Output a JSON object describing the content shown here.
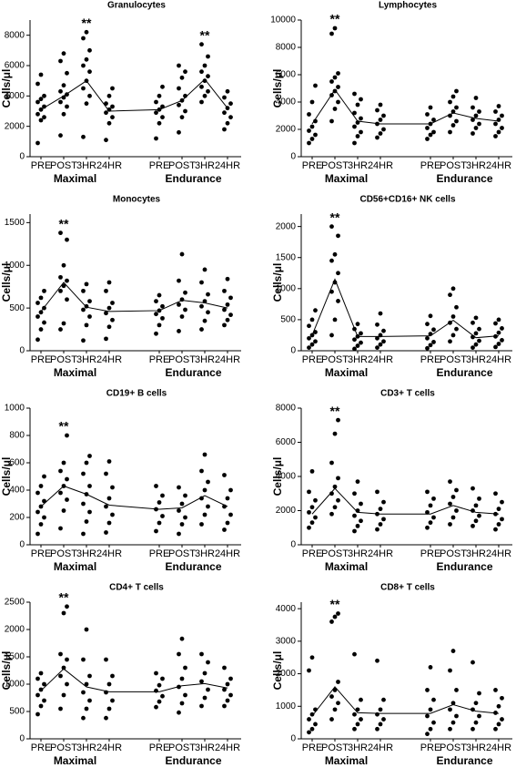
{
  "chart_data": [
    {
      "type": "strip",
      "title": "Granulocytes",
      "ylabel": "Cells/μl",
      "categories": [
        "PRE",
        "POST",
        "3HR",
        "24HR",
        "PRE",
        "POST",
        "3HR",
        "24HR"
      ],
      "groups": [
        "Maximal",
        "Endurance"
      ],
      "significance": [
        null,
        null,
        "**",
        null,
        null,
        null,
        "**",
        null
      ],
      "ylim": [
        0,
        9000
      ],
      "yticks": [
        0,
        2000,
        4000,
        6000,
        8000
      ],
      "means": [
        3100,
        4000,
        5000,
        3000,
        3100,
        3700,
        5100,
        3200
      ],
      "points": [
        [
          900,
          2400,
          2600,
          2800,
          3100,
          3300,
          3600,
          3800,
          4000,
          4800,
          5400
        ],
        [
          1400,
          2800,
          3300,
          3600,
          3900,
          4100,
          4300,
          4700,
          5500,
          6300,
          6800
        ],
        [
          1300,
          3500,
          4000,
          4500,
          5000,
          5600,
          6000,
          6400,
          7000,
          7800,
          8200
        ],
        [
          1100,
          2200,
          2600,
          2900,
          3100,
          3300,
          3500,
          4000,
          4500
        ],
        [
          1200,
          2200,
          2600,
          2900,
          3100,
          3300,
          3600,
          4000,
          4600
        ],
        [
          1600,
          2600,
          3000,
          3400,
          3700,
          4000,
          4500,
          5200,
          5600,
          6000
        ],
        [
          3600,
          4000,
          4300,
          4600,
          5000,
          5300,
          5600,
          6000,
          6600,
          7400
        ],
        [
          1800,
          2200,
          2600,
          2900,
          3200,
          3500,
          3900,
          4300
        ]
      ]
    },
    {
      "type": "strip",
      "title": "Lymphocytes",
      "ylabel": "Cells/μl",
      "categories": [
        "PRE",
        "POST",
        "3HR",
        "24HR",
        "PRE",
        "POST",
        "3HR",
        "24HR"
      ],
      "groups": [
        "Maximal",
        "Endurance"
      ],
      "significance": [
        null,
        "**",
        null,
        null,
        null,
        null,
        null,
        null
      ],
      "ylim": [
        0,
        10000
      ],
      "yticks": [
        0,
        2000,
        4000,
        6000,
        8000,
        10000
      ],
      "means": [
        2400,
        4900,
        2600,
        2400,
        2400,
        3200,
        2800,
        2600
      ],
      "points": [
        [
          1000,
          1300,
          1600,
          1900,
          2200,
          2600,
          3100,
          4000,
          5200
        ],
        [
          2600,
          3500,
          4000,
          4500,
          4800,
          5100,
          5500,
          5800,
          6100,
          9000,
          9400
        ],
        [
          1000,
          1500,
          1800,
          2200,
          2500,
          2800,
          3200,
          3800,
          4200,
          4600
        ],
        [
          1400,
          1700,
          2000,
          2400,
          2700,
          3000,
          3400,
          3800
        ],
        [
          1300,
          1600,
          1800,
          2100,
          2400,
          2700,
          3100,
          3600
        ],
        [
          1800,
          2300,
          2600,
          3000,
          3300,
          3600,
          4000,
          4400,
          4800
        ],
        [
          1700,
          2100,
          2400,
          2700,
          3000,
          3300,
          3600,
          4300
        ],
        [
          1500,
          1800,
          2100,
          2400,
          2700,
          3000,
          3300,
          3700
        ]
      ]
    },
    {
      "type": "strip",
      "title": "Monocytes",
      "ylabel": "Cells/μl",
      "categories": [
        "PRE",
        "POST",
        "3HR",
        "24HR",
        "PRE",
        "POST",
        "3HR",
        "24HR"
      ],
      "groups": [
        "Maximal",
        "Endurance"
      ],
      "significance": [
        null,
        "**",
        null,
        null,
        null,
        null,
        null,
        null
      ],
      "ylim": [
        0,
        1600
      ],
      "yticks": [
        0,
        500,
        1000,
        1500
      ],
      "means": [
        460,
        800,
        510,
        460,
        470,
        590,
        560,
        500
      ],
      "points": [
        [
          130,
          250,
          330,
          400,
          450,
          500,
          560,
          620,
          700
        ],
        [
          250,
          320,
          600,
          700,
          760,
          820,
          860,
          1000,
          1300,
          1380
        ],
        [
          120,
          300,
          400,
          480,
          520,
          580,
          700,
          780
        ],
        [
          140,
          280,
          360,
          440,
          500,
          560,
          700,
          800
        ],
        [
          200,
          300,
          380,
          430,
          470,
          520,
          580,
          650
        ],
        [
          230,
          400,
          480,
          540,
          600,
          680,
          820,
          1130
        ],
        [
          250,
          350,
          450,
          520,
          580,
          660,
          800,
          950
        ],
        [
          300,
          360,
          420,
          480,
          540,
          620,
          700,
          840
        ]
      ]
    },
    {
      "type": "strip",
      "title": "CD56+CD16+ NK cells",
      "ylabel": "Cells/μl",
      "categories": [
        "PRE",
        "POST",
        "3HR",
        "24HR",
        "PRE",
        "POST",
        "3HR",
        "24HR"
      ],
      "groups": [
        "Maximal",
        "Endurance"
      ],
      "significance": [
        null,
        "**",
        null,
        null,
        null,
        null,
        null,
        null
      ],
      "ylim": [
        0,
        2200
      ],
      "yticks": [
        0,
        500,
        1000,
        1500,
        2000
      ],
      "means": [
        250,
        1150,
        230,
        230,
        240,
        490,
        210,
        240
      ],
      "points": [
        [
          50,
          100,
          150,
          200,
          250,
          300,
          400,
          500,
          650
        ],
        [
          250,
          500,
          800,
          950,
          1100,
          1250,
          1450,
          1550,
          1850,
          2000
        ],
        [
          30,
          80,
          130,
          180,
          230,
          280,
          350,
          430
        ],
        [
          50,
          100,
          150,
          200,
          250,
          320,
          420,
          600
        ],
        [
          40,
          90,
          140,
          200,
          270,
          340,
          430,
          560
        ],
        [
          150,
          250,
          350,
          450,
          550,
          700,
          900,
          1000
        ],
        [
          50,
          100,
          160,
          220,
          280,
          350,
          450,
          530
        ],
        [
          60,
          110,
          170,
          230,
          290,
          360,
          440,
          500
        ]
      ]
    },
    {
      "type": "strip",
      "title": "CD19+ B cells",
      "ylabel": "Cells/μl",
      "categories": [
        "PRE",
        "POST",
        "3HR",
        "24HR",
        "PRE",
        "POST",
        "3HR",
        "24HR"
      ],
      "groups": [
        "Maximal",
        "Endurance"
      ],
      "significance": [
        null,
        "**",
        null,
        null,
        null,
        null,
        null,
        null
      ],
      "ylim": [
        0,
        1000
      ],
      "yticks": [
        0,
        200,
        400,
        600,
        800,
        1000
      ],
      "means": [
        280,
        430,
        370,
        290,
        260,
        270,
        360,
        280
      ],
      "points": [
        [
          80,
          150,
          200,
          240,
          280,
          320,
          380,
          430,
          500
        ],
        [
          120,
          250,
          330,
          380,
          430,
          480,
          540,
          600,
          800
        ],
        [
          80,
          170,
          240,
          300,
          370,
          430,
          520,
          600,
          650
        ],
        [
          90,
          160,
          220,
          280,
          340,
          420,
          520,
          610
        ],
        [
          100,
          160,
          210,
          260,
          310,
          360,
          430
        ],
        [
          80,
          150,
          200,
          250,
          300,
          360,
          420
        ],
        [
          150,
          220,
          280,
          340,
          400,
          460,
          540,
          660
        ],
        [
          110,
          160,
          220,
          280,
          340,
          400,
          510
        ]
      ]
    },
    {
      "type": "strip",
      "title": "CD3+ T cells",
      "ylabel": "Cells/μl",
      "categories": [
        "PRE",
        "POST",
        "3HR",
        "24HR",
        "PRE",
        "POST",
        "3HR",
        "24HR"
      ],
      "groups": [
        "Maximal",
        "Endurance"
      ],
      "significance": [
        null,
        "**",
        null,
        null,
        null,
        null,
        null,
        null
      ],
      "ylim": [
        0,
        8000
      ],
      "yticks": [
        0,
        2000,
        4000,
        6000,
        8000
      ],
      "means": [
        1800,
        3300,
        1900,
        1800,
        1800,
        2300,
        1900,
        1800
      ],
      "points": [
        [
          1000,
          1300,
          1600,
          1900,
          2200,
          2600,
          3100,
          4300
        ],
        [
          1800,
          2200,
          2600,
          3000,
          3400,
          3900,
          4800,
          6500,
          7300
        ],
        [
          800,
          1100,
          1400,
          1700,
          2000,
          2400,
          3000,
          3700
        ],
        [
          900,
          1200,
          1500,
          1800,
          2100,
          2500,
          3100
        ],
        [
          1000,
          1300,
          1600,
          1900,
          2300,
          2700,
          3100
        ],
        [
          1200,
          1600,
          2000,
          2400,
          2800,
          3200,
          3700
        ],
        [
          1100,
          1400,
          1700,
          2000,
          2300,
          2700,
          3300
        ],
        [
          900,
          1200,
          1500,
          1800,
          2100,
          2500,
          3000
        ]
      ]
    },
    {
      "type": "strip",
      "title": "CD4+ T cells",
      "ylabel": "Cells/μl",
      "categories": [
        "PRE",
        "POST",
        "3HR",
        "24HR",
        "PRE",
        "POST",
        "3HR",
        "24HR"
      ],
      "groups": [
        "Maximal",
        "Endurance"
      ],
      "significance": [
        null,
        "**",
        null,
        null,
        null,
        null,
        null,
        null
      ],
      "ylim": [
        0,
        2500
      ],
      "yticks": [
        0,
        500,
        1000,
        1500,
        2000,
        2500
      ],
      "means": [
        880,
        1280,
        950,
        860,
        860,
        970,
        1010,
        930
      ],
      "points": [
        [
          450,
          600,
          700,
          800,
          900,
          1000,
          1100,
          1200
        ],
        [
          550,
          800,
          1000,
          1150,
          1300,
          1450,
          1550,
          2300,
          2420
        ],
        [
          380,
          550,
          700,
          850,
          1000,
          1150,
          1450,
          2000
        ],
        [
          380,
          550,
          700,
          850,
          1000,
          1150,
          1450
        ],
        [
          580,
          680,
          780,
          880,
          980,
          1100,
          1200
        ],
        [
          480,
          650,
          800,
          950,
          1100,
          1300,
          1550,
          1830
        ],
        [
          600,
          750,
          900,
          1050,
          1200,
          1400,
          1550
        ],
        [
          600,
          700,
          800,
          900,
          1000,
          1100,
          1300
        ]
      ]
    },
    {
      "type": "strip",
      "title": "CD8+ T cells",
      "ylabel": "Cells/μl",
      "categories": [
        "PRE",
        "POST",
        "3HR",
        "24HR",
        "PRE",
        "POST",
        "3HR",
        "24HR"
      ],
      "groups": [
        "Maximal",
        "Endurance"
      ],
      "significance": [
        null,
        "**",
        null,
        null,
        null,
        null,
        null,
        null
      ],
      "ylim": [
        0,
        4200
      ],
      "yticks": [
        0,
        1000,
        2000,
        3000,
        4000
      ],
      "means": [
        700,
        1600,
        800,
        780,
        780,
        1050,
        850,
        780
      ],
      "points": [
        [
          200,
          300,
          450,
          600,
          750,
          900,
          2100,
          2500
        ],
        [
          600,
          900,
          1100,
          1300,
          1500,
          1750,
          3600,
          3750,
          3850
        ],
        [
          300,
          450,
          600,
          750,
          900,
          1200,
          2600
        ],
        [
          300,
          450,
          600,
          750,
          900,
          1200,
          2400
        ],
        [
          150,
          300,
          500,
          700,
          900,
          1200,
          1500,
          2200
        ],
        [
          300,
          500,
          700,
          900,
          1100,
          1500,
          2100,
          2700
        ],
        [
          300,
          500,
          700,
          900,
          1100,
          1400,
          2350
        ],
        [
          300,
          450,
          600,
          800,
          1000,
          1250,
          1500
        ]
      ]
    }
  ]
}
